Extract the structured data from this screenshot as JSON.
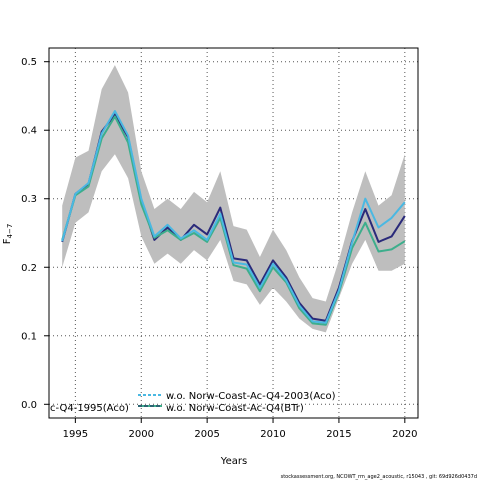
{
  "chart_data": {
    "type": "line",
    "xlabel": "Years",
    "ylabel_main": "F",
    "ylabel_sub": "4−7",
    "xlim": [
      1993,
      2021
    ],
    "ylim": [
      -0.02,
      0.52
    ],
    "xticks": [
      1995,
      2000,
      2005,
      2010,
      2015,
      2020
    ],
    "yticks": [
      0.0,
      0.1,
      0.2,
      0.3,
      0.4,
      0.5
    ],
    "ytick_labels": [
      "0.0",
      "0.1",
      "0.2",
      "0.3",
      "0.4",
      "0.5"
    ],
    "grid": true,
    "legend_placement": "bottom",
    "x": [
      1994,
      1995,
      1996,
      1997,
      1998,
      1999,
      2000,
      2001,
      2002,
      2003,
      2004,
      2005,
      2006,
      2007,
      2008,
      2009,
      2010,
      2011,
      2012,
      2013,
      2014,
      2015,
      2016,
      2017,
      2018,
      2019,
      2020
    ],
    "band": {
      "color": "#bebebe",
      "upper": [
        0.29,
        0.36,
        0.37,
        0.46,
        0.495,
        0.455,
        0.34,
        0.285,
        0.3,
        0.285,
        0.31,
        0.295,
        0.34,
        0.26,
        0.255,
        0.215,
        0.255,
        0.225,
        0.185,
        0.155,
        0.15,
        0.21,
        0.28,
        0.34,
        0.29,
        0.305,
        0.365
      ],
      "lower": [
        0.2,
        0.265,
        0.28,
        0.34,
        0.365,
        0.33,
        0.245,
        0.205,
        0.22,
        0.205,
        0.225,
        0.21,
        0.24,
        0.18,
        0.175,
        0.145,
        0.17,
        0.15,
        0.125,
        0.11,
        0.105,
        0.155,
        0.205,
        0.24,
        0.195,
        0.195,
        0.205
      ]
    },
    "series": [
      {
        "color": "#2a2a7a",
        "values": [
          0.237,
          0.307,
          0.322,
          0.398,
          0.423,
          0.39,
          0.298,
          0.24,
          0.258,
          0.24,
          0.262,
          0.248,
          0.287,
          0.213,
          0.21,
          0.175,
          0.21,
          0.185,
          0.148,
          0.125,
          0.122,
          0.17,
          0.238,
          0.285,
          0.237,
          0.245,
          0.275
        ]
      },
      {
        "color": "#3dae8c",
        "values": [
          0.24,
          0.305,
          0.318,
          0.388,
          0.42,
          0.382,
          0.292,
          0.243,
          0.254,
          0.24,
          0.25,
          0.237,
          0.272,
          0.203,
          0.198,
          0.165,
          0.2,
          0.178,
          0.14,
          0.118,
          0.116,
          0.163,
          0.228,
          0.265,
          0.223,
          0.226,
          0.238
        ]
      },
      {
        "color": "#4ab8e2",
        "values": [
          0.238,
          0.307,
          0.323,
          0.395,
          0.428,
          0.392,
          0.3,
          0.245,
          0.262,
          0.242,
          0.254,
          0.24,
          0.278,
          0.207,
          0.204,
          0.17,
          0.205,
          0.181,
          0.144,
          0.121,
          0.119,
          0.166,
          0.236,
          0.3,
          0.258,
          0.272,
          0.295
        ]
      }
    ],
    "legend": [
      {
        "label": "w.o. Norw-Coast-Ac-Q4-2003(Aco)",
        "color": "#4ab8e2",
        "dash": "3,2"
      },
      {
        "label": "c-Q4-1995(Aco)",
        "color": "#1b1b5a",
        "dash": ""
      },
      {
        "label": "w.o. Norw-Coast-Ac-Q4(BTr)",
        "color": "#3dae8c",
        "dash": ""
      }
    ]
  },
  "footer": "stockassessment.org, NCOWT_rm_age2_acoustic, r15043 , git: 69d926d0437d"
}
